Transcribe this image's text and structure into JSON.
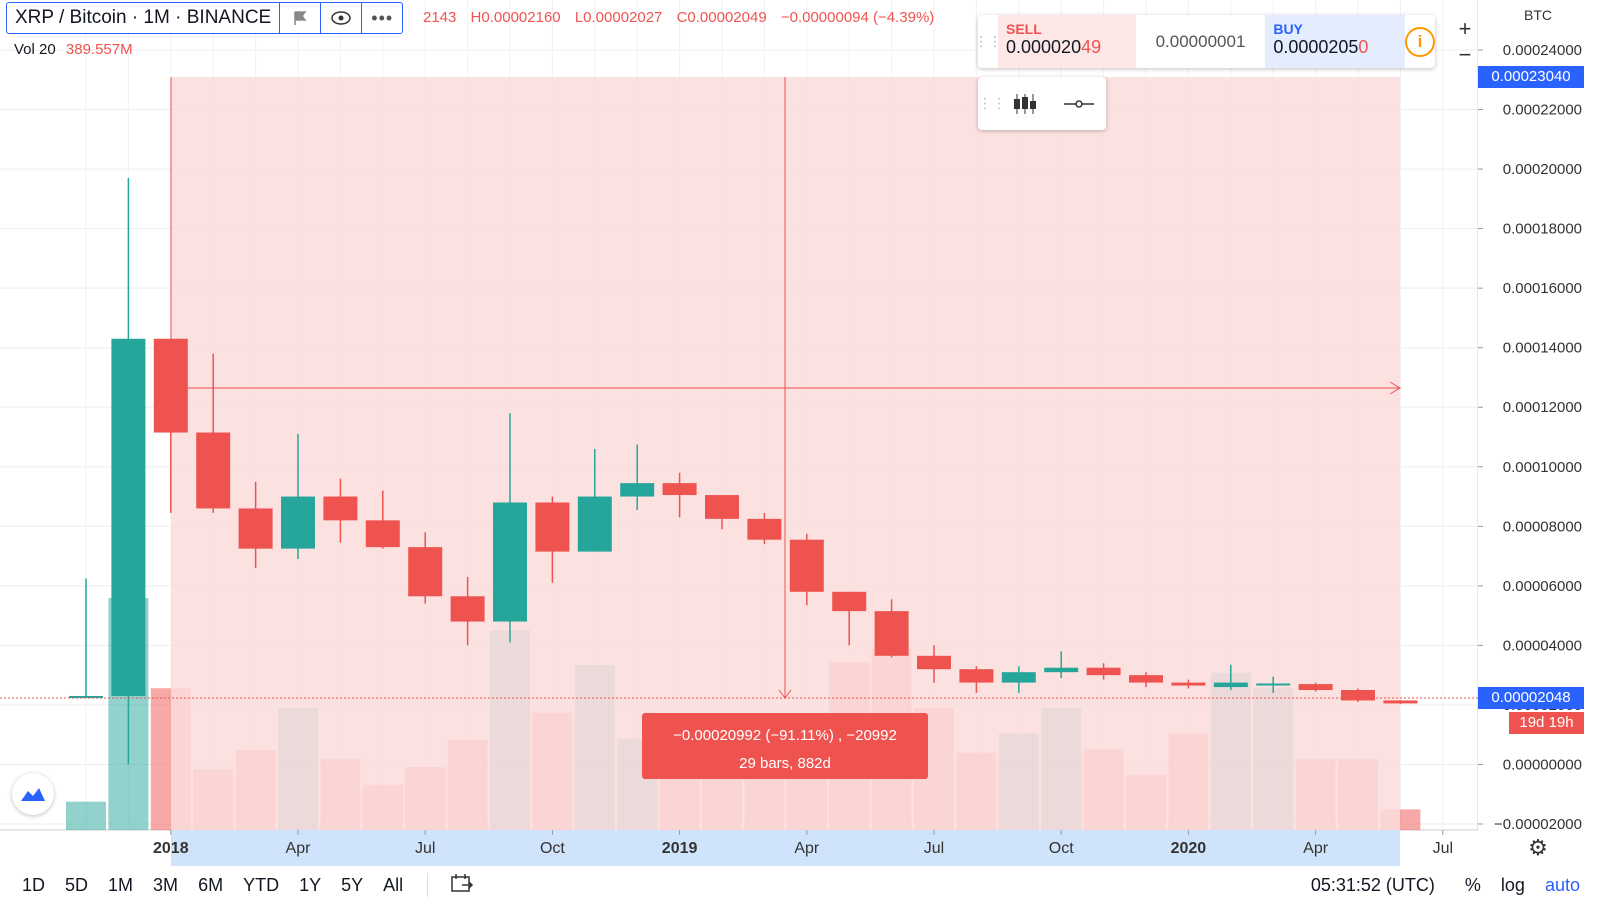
{
  "legend": {
    "symbol": "XRP / Bitcoin · 1M · BINANCE",
    "ohlc": [
      "2143",
      "H0.00002160",
      "L0.00002027",
      "C0.00002049",
      "−0.00000094 (−4.39%)"
    ],
    "vol_label": "Vol 20",
    "vol_value": "389.557M"
  },
  "trade_panel": {
    "sell_label": "SELL",
    "sell_price_main": "0.000020",
    "sell_price_hl": "49",
    "spread": "0.00000001",
    "buy_label": "BUY",
    "buy_price_main": "0.0000205",
    "buy_price_hl": "0",
    "info_icon": "i"
  },
  "zoom": {
    "plus": "+",
    "minus": "−"
  },
  "price_axis": {
    "currency": "BTC",
    "ticks": [
      "0.00024000",
      "0.00022000",
      "0.00020000",
      "0.00018000",
      "0.00016000",
      "0.00014000",
      "0.00012000",
      "0.00010000",
      "0.00008000",
      "0.00006000",
      "0.00004000",
      "0.00002000",
      "0.00000000",
      "−0.00002000"
    ],
    "highlight_top": "0.00023040",
    "highlight_last": "0.00002048",
    "countdown": "19d 19h"
  },
  "time_axis": [
    "2018",
    "Apr",
    "Jul",
    "Oct",
    "2019",
    "Apr",
    "Jul",
    "Oct",
    "2020",
    "Apr",
    "Jul"
  ],
  "measure": {
    "line1": "−0.00020992 (−91.11%) , −20992",
    "line2": "29 bars, 882d"
  },
  "bottom_bar": {
    "ranges": [
      "1D",
      "5D",
      "1M",
      "3M",
      "6M",
      "YTD",
      "1Y",
      "5Y",
      "All"
    ],
    "time": "05:31:52 (UTC)",
    "percent": "%",
    "log": "log",
    "auto": "auto"
  },
  "colors": {
    "up": "#26a69a",
    "down": "#ef5350",
    "accent": "#2962ff",
    "measure_fill": "#fbdcdc"
  },
  "chart_data": {
    "type": "candlestick",
    "ylim": [
      -2e-05,
      0.00024
    ],
    "candles": [
      {
        "o": 2.25e-05,
        "h": 6.25e-05,
        "l": 2.25e-05,
        "c": 2.3e-05,
        "v": 22
      },
      {
        "o": 2.3e-05,
        "h": 0.000197,
        "l": 0.0,
        "c": 0.000143,
        "v": 180
      },
      {
        "o": 0.000143,
        "h": 0.000143,
        "l": 8.45e-05,
        "c": 0.0001115,
        "v": 110
      },
      {
        "o": 0.0001115,
        "h": 0.000138,
        "l": 8.45e-05,
        "c": 8.6e-05,
        "v": 47
      },
      {
        "o": 8.6e-05,
        "h": 9.5e-05,
        "l": 6.6e-05,
        "c": 7.25e-05,
        "v": 62
      },
      {
        "o": 7.25e-05,
        "h": 0.000111,
        "l": 6.9e-05,
        "c": 9e-05,
        "v": 95
      },
      {
        "o": 9e-05,
        "h": 9.6e-05,
        "l": 7.45e-05,
        "c": 8.2e-05,
        "v": 55
      },
      {
        "o": 8.2e-05,
        "h": 9.2e-05,
        "l": 7.25e-05,
        "c": 7.3e-05,
        "v": 35
      },
      {
        "o": 7.3e-05,
        "h": 7.8e-05,
        "l": 5.4e-05,
        "c": 5.65e-05,
        "v": 49
      },
      {
        "o": 5.65e-05,
        "h": 6.3e-05,
        "l": 4e-05,
        "c": 4.8e-05,
        "v": 70
      },
      {
        "o": 4.8e-05,
        "h": 0.000118,
        "l": 4.1e-05,
        "c": 8.8e-05,
        "v": 155
      },
      {
        "o": 8.8e-05,
        "h": 9e-05,
        "l": 6.1e-05,
        "c": 7.15e-05,
        "v": 91
      },
      {
        "o": 7.15e-05,
        "h": 0.000106,
        "l": 7.15e-05,
        "c": 9e-05,
        "v": 128
      },
      {
        "o": 9e-05,
        "h": 0.0001075,
        "l": 8.55e-05,
        "c": 9.45e-05,
        "v": 71
      },
      {
        "o": 9.45e-05,
        "h": 9.8e-05,
        "l": 8.3e-05,
        "c": 9.05e-05,
        "v": 60
      },
      {
        "o": 9.05e-05,
        "h": 9.05e-05,
        "l": 7.9e-05,
        "c": 8.25e-05,
        "v": 46
      },
      {
        "o": 8.25e-05,
        "h": 8.45e-05,
        "l": 7.4e-05,
        "c": 7.55e-05,
        "v": 58
      },
      {
        "o": 7.55e-05,
        "h": 7.75e-05,
        "l": 5.35e-05,
        "c": 5.8e-05,
        "v": 74
      },
      {
        "o": 5.8e-05,
        "h": 5.8e-05,
        "l": 4e-05,
        "c": 5.15e-05,
        "v": 130
      },
      {
        "o": 5.15e-05,
        "h": 5.55e-05,
        "l": 3.6e-05,
        "c": 3.65e-05,
        "v": 142
      },
      {
        "o": 3.65e-05,
        "h": 4e-05,
        "l": 2.75e-05,
        "c": 3.2e-05,
        "v": 95
      },
      {
        "o": 3.2e-05,
        "h": 3.3e-05,
        "l": 2.4e-05,
        "c": 2.75e-05,
        "v": 60
      },
      {
        "o": 2.75e-05,
        "h": 3.3e-05,
        "l": 2.4e-05,
        "c": 3.1e-05,
        "v": 75
      },
      {
        "o": 3.1e-05,
        "h": 3.8e-05,
        "l": 2.9e-05,
        "c": 3.25e-05,
        "v": 95
      },
      {
        "o": 3.25e-05,
        "h": 3.4e-05,
        "l": 2.85e-05,
        "c": 3e-05,
        "v": 63
      },
      {
        "o": 3e-05,
        "h": 3.1e-05,
        "l": 2.6e-05,
        "c": 2.75e-05,
        "v": 43
      },
      {
        "o": 2.75e-05,
        "h": 2.85e-05,
        "l": 2.55e-05,
        "c": 2.65e-05,
        "v": 75
      },
      {
        "o": 2.6e-05,
        "h": 3.35e-05,
        "l": 2.5e-05,
        "c": 2.75e-05,
        "v": 122
      },
      {
        "o": 2.68e-05,
        "h": 2.95e-05,
        "l": 2.4e-05,
        "c": 2.72e-05,
        "v": 110
      },
      {
        "o": 2.7e-05,
        "h": 2.75e-05,
        "l": 2.45e-05,
        "c": 2.5e-05,
        "v": 55
      },
      {
        "o": 2.5e-05,
        "h": 2.55e-05,
        "l": 2.1e-05,
        "c": 2.15e-05,
        "v": 55
      },
      {
        "o": 2.15e-05,
        "h": 2.16e-05,
        "l": 2.03e-05,
        "c": 2.05e-05,
        "v": 16
      }
    ]
  }
}
